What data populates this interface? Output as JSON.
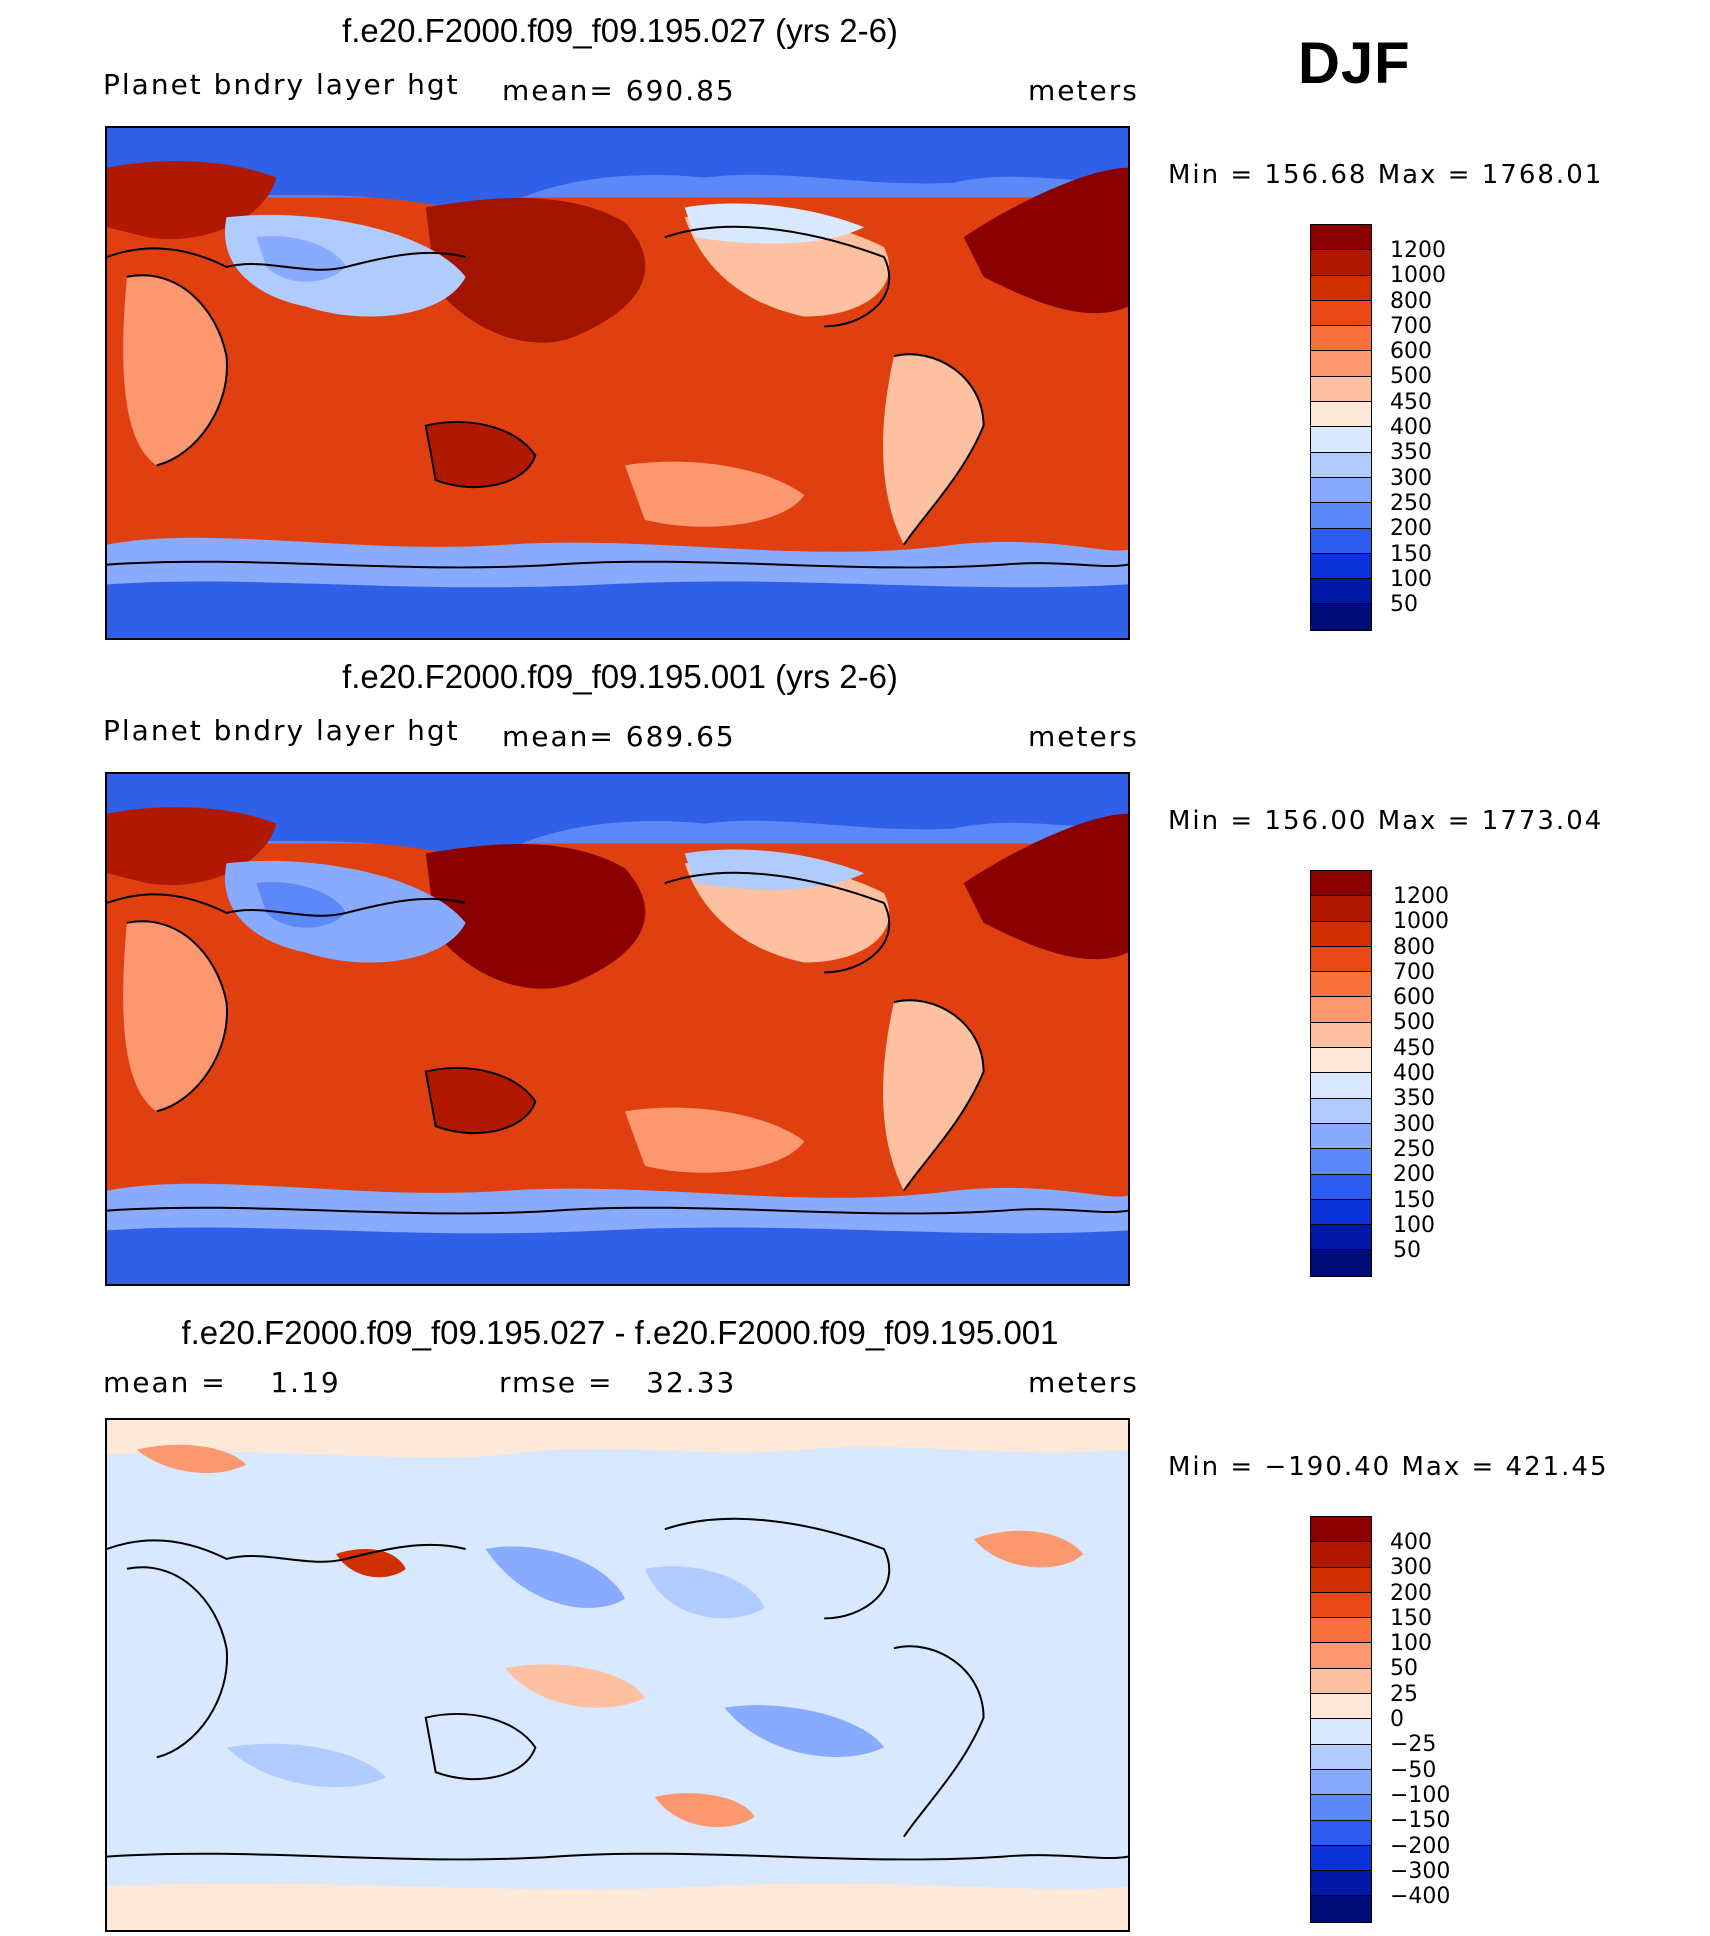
{
  "season": "DJF",
  "panels": [
    {
      "title": "f.e20.F2000.f09_f09.195.027 (yrs 2-6)",
      "left": "Planet bndry layer hgt",
      "center": "mean= 690.85",
      "right": "meters",
      "minmax": "Min = 156.68 Max = 1768.01",
      "colorbar": {
        "labels": [
          "1200",
          "1000",
          "800",
          "700",
          "600",
          "500",
          "450",
          "400",
          "350",
          "300",
          "250",
          "200",
          "150",
          "100",
          "50"
        ],
        "colors": [
          "#8a0000",
          "#b01800",
          "#d03000",
          "#e84818",
          "#f8703c",
          "#fc9870",
          "#fdc0a0",
          "#fee8d8",
          "#d8e8ff",
          "#b0ccff",
          "#88aaff",
          "#5c88f8",
          "#2c5cf0",
          "#0a32d8",
          "#0018a8",
          "#000c78"
        ]
      }
    },
    {
      "title": "f.e20.F2000.f09_f09.195.001 (yrs 2-6)",
      "left": "Planet bndry layer hgt",
      "center": "mean= 689.65",
      "right": "meters",
      "minmax": "Min = 156.00 Max = 1773.04",
      "colorbar": {
        "labels": [
          "1200",
          "1000",
          "800",
          "700",
          "600",
          "500",
          "450",
          "400",
          "350",
          "300",
          "250",
          "200",
          "150",
          "100",
          "50"
        ],
        "colors": [
          "#8a0000",
          "#b01800",
          "#d03000",
          "#e84818",
          "#f8703c",
          "#fc9870",
          "#fdc0a0",
          "#fee8d8",
          "#d8e8ff",
          "#b0ccff",
          "#88aaff",
          "#5c88f8",
          "#2c5cf0",
          "#0a32d8",
          "#0018a8",
          "#000c78"
        ]
      }
    },
    {
      "title": "f.e20.F2000.f09_f09.195.027 - f.e20.F2000.f09_f09.195.001",
      "left": "mean =    1.19",
      "center": "rmse =   32.33",
      "right": "meters",
      "minmax": "Min = −190.40 Max = 421.45",
      "colorbar": {
        "labels": [
          "400",
          "300",
          "200",
          "150",
          "100",
          "50",
          "25",
          "0",
          "−25",
          "−50",
          "−100",
          "−150",
          "−200",
          "−300",
          "−400"
        ],
        "colors": [
          "#8a0000",
          "#b01800",
          "#d03000",
          "#e84818",
          "#f8703c",
          "#fc9870",
          "#fdc0a0",
          "#fee8d8",
          "#d8e8ff",
          "#b0ccff",
          "#88aaff",
          "#5c88f8",
          "#2c5cf0",
          "#0a32d8",
          "#0018a8",
          "#000c78"
        ]
      }
    }
  ]
}
